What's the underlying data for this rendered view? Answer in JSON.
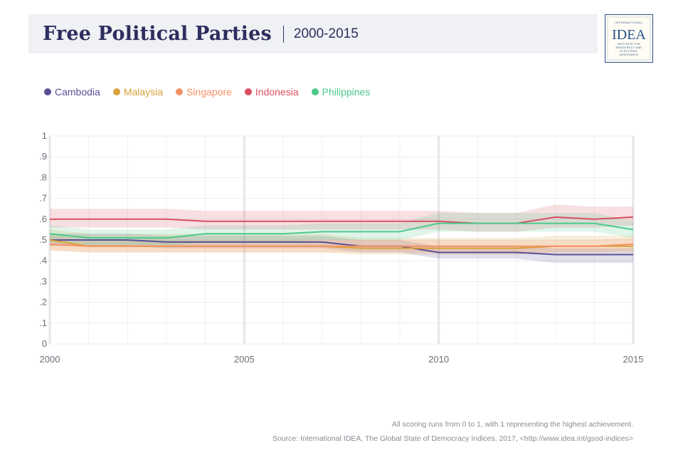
{
  "header": {
    "title": "Free Political Parties",
    "subtitle": "2000-2015"
  },
  "logo": {
    "top_text": "INTERNATIONAL",
    "mark": "IDEA",
    "bottom_lines": [
      "INSTITUTE FOR",
      "DEMOCRACY AND",
      "ELECTORAL",
      "ASSISTANCE"
    ]
  },
  "colors": {
    "Cambodia": "#5b4f96",
    "Malaysia": "#d7a33a",
    "Singapore": "#f59166",
    "Indonesia": "#d94f61",
    "Philippines": "#4cc98a"
  },
  "footer": {
    "note": "All scoring runs from 0 to 1, with 1 representing the highest achievement.",
    "source": "Source: International IDEA, The Global State of Democracy Indices, 2017, <http://www.idea.int/gsod-indices>"
  },
  "chart_data": {
    "type": "line",
    "x": [
      2000,
      2001,
      2002,
      2003,
      2004,
      2005,
      2006,
      2007,
      2008,
      2009,
      2010,
      2011,
      2012,
      2013,
      2014,
      2015
    ],
    "xlim": [
      2000,
      2015
    ],
    "ylim": [
      0,
      1
    ],
    "x_ticks": [
      2000,
      2005,
      2010,
      2015
    ],
    "x_tick_labels": [
      "2000",
      "2005",
      "2010",
      "2015"
    ],
    "y_ticks": [
      0,
      0.1,
      0.2,
      0.3,
      0.4,
      0.5,
      0.6,
      0.7,
      0.8,
      0.9,
      1
    ],
    "y_tick_labels": [
      "0",
      ".1",
      ".2",
      ".3",
      ".4",
      ".5",
      ".6",
      ".7",
      ".8",
      ".9",
      "1"
    ],
    "grid": true,
    "legend_position": "top-left",
    "uncertainty_bands": true,
    "series": [
      {
        "name": "Cambodia",
        "values": [
          0.5,
          0.5,
          0.5,
          0.49,
          0.49,
          0.49,
          0.49,
          0.49,
          0.47,
          0.47,
          0.44,
          0.44,
          0.44,
          0.43,
          0.43,
          0.43
        ],
        "lower": [
          0.47,
          0.47,
          0.47,
          0.46,
          0.46,
          0.46,
          0.46,
          0.46,
          0.44,
          0.44,
          0.41,
          0.41,
          0.41,
          0.39,
          0.39,
          0.39
        ],
        "upper": [
          0.53,
          0.53,
          0.53,
          0.52,
          0.52,
          0.52,
          0.52,
          0.52,
          0.5,
          0.5,
          0.47,
          0.47,
          0.47,
          0.46,
          0.46,
          0.46
        ]
      },
      {
        "name": "Malaysia",
        "values": [
          0.5,
          0.47,
          0.47,
          0.47,
          0.47,
          0.47,
          0.47,
          0.47,
          0.46,
          0.46,
          0.46,
          0.46,
          0.46,
          0.47,
          0.47,
          0.47
        ],
        "lower": [
          0.45,
          0.44,
          0.44,
          0.44,
          0.44,
          0.44,
          0.44,
          0.44,
          0.43,
          0.43,
          0.43,
          0.43,
          0.43,
          0.44,
          0.44,
          0.44
        ],
        "upper": [
          0.55,
          0.53,
          0.53,
          0.53,
          0.53,
          0.53,
          0.53,
          0.53,
          0.51,
          0.51,
          0.51,
          0.51,
          0.51,
          0.52,
          0.52,
          0.52
        ]
      },
      {
        "name": "Singapore",
        "values": [
          0.48,
          0.47,
          0.47,
          0.47,
          0.47,
          0.47,
          0.47,
          0.47,
          0.47,
          0.47,
          0.47,
          0.47,
          0.47,
          0.47,
          0.47,
          0.48
        ],
        "lower": [
          0.45,
          0.44,
          0.44,
          0.44,
          0.44,
          0.44,
          0.44,
          0.44,
          0.44,
          0.44,
          0.44,
          0.44,
          0.44,
          0.44,
          0.44,
          0.45
        ],
        "upper": [
          0.52,
          0.5,
          0.5,
          0.5,
          0.5,
          0.5,
          0.5,
          0.5,
          0.5,
          0.5,
          0.5,
          0.5,
          0.5,
          0.5,
          0.5,
          0.51
        ]
      },
      {
        "name": "Indonesia",
        "values": [
          0.6,
          0.6,
          0.6,
          0.6,
          0.59,
          0.59,
          0.59,
          0.59,
          0.59,
          0.59,
          0.59,
          0.58,
          0.58,
          0.61,
          0.6,
          0.61
        ],
        "lower": [
          0.56,
          0.56,
          0.56,
          0.56,
          0.55,
          0.55,
          0.55,
          0.55,
          0.55,
          0.55,
          0.55,
          0.54,
          0.54,
          0.56,
          0.56,
          0.57
        ],
        "upper": [
          0.65,
          0.65,
          0.65,
          0.65,
          0.64,
          0.64,
          0.64,
          0.64,
          0.64,
          0.64,
          0.64,
          0.63,
          0.63,
          0.67,
          0.66,
          0.66
        ]
      },
      {
        "name": "Philippines",
        "values": [
          0.53,
          0.51,
          0.51,
          0.51,
          0.53,
          0.53,
          0.53,
          0.54,
          0.54,
          0.54,
          0.58,
          0.58,
          0.58,
          0.58,
          0.58,
          0.55
        ],
        "lower": [
          0.49,
          0.47,
          0.47,
          0.47,
          0.49,
          0.49,
          0.49,
          0.5,
          0.5,
          0.5,
          0.54,
          0.54,
          0.54,
          0.54,
          0.54,
          0.51
        ],
        "upper": [
          0.57,
          0.55,
          0.55,
          0.55,
          0.57,
          0.57,
          0.57,
          0.58,
          0.58,
          0.58,
          0.63,
          0.63,
          0.63,
          0.63,
          0.63,
          0.59
        ]
      }
    ]
  }
}
